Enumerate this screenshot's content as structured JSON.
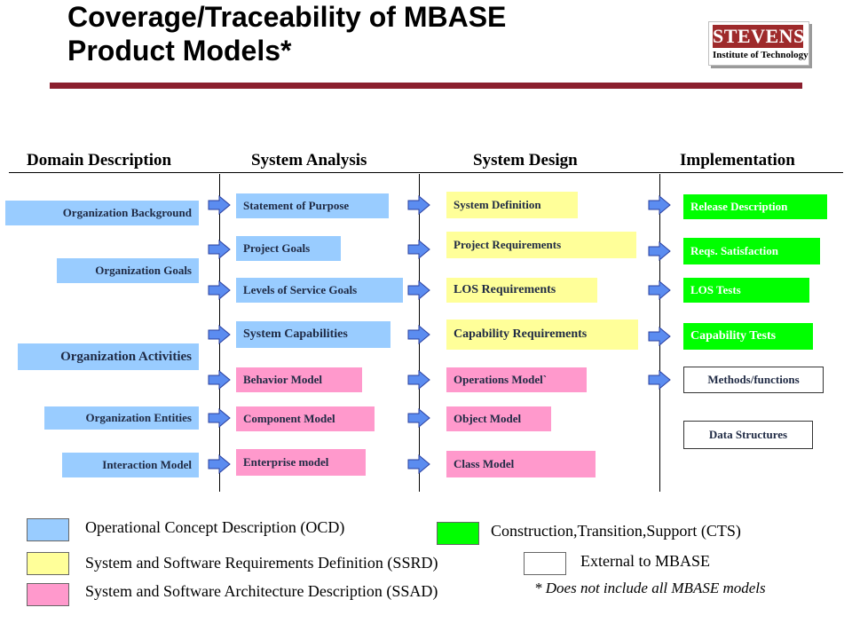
{
  "title": {
    "line1": "Coverage/Traceability of MBASE",
    "line2": "Product Models*"
  },
  "logo": {
    "name": "STEVENS",
    "subtitle": "Institute of Technology"
  },
  "columns": [
    "Domain Description",
    "System Analysis",
    "System Design",
    "Implementation"
  ],
  "domain_description": [
    "Organization  Background",
    "Organization Goals",
    "Organization Activities",
    "Organization Entities",
    "Interaction Model"
  ],
  "system_analysis": [
    "Statement of Purpose",
    "Project Goals",
    "Levels of Service Goals",
    "System Capabilities",
    "Behavior   Model",
    "Component  Model",
    "Enterprise model"
  ],
  "system_design": [
    "System Definition",
    "Project Requirements",
    "LOS Requirements",
    "Capability Requirements",
    "Operations Model`",
    "Object Model",
    "Class Model"
  ],
  "implementation": [
    "Release Description",
    "Reqs. Satisfaction",
    "LOS Tests",
    "Capability Tests",
    "Methods/functions",
    "Data Structures"
  ],
  "legend": {
    "ocd": "Operational Concept Description (OCD)",
    "ssrd": "System and Software Requirements Definition (SSRD)",
    "ssad": "System and Software Architecture Description (SSAD)",
    "cts": "Construction,Transition,Support (CTS)",
    "ext": "External to MBASE"
  },
  "note": "* Does not include all MBASE models",
  "colors": {
    "ocd": "#99ccff",
    "ssrd": "#ffff99",
    "ssad": "#ff99cc",
    "cts": "#00ff00",
    "ext": "#ffffff",
    "arrow": "#5b8cf0",
    "accent_bar": "#8b1f2e"
  },
  "icons": {
    "arrow": "right-arrow-icon"
  }
}
